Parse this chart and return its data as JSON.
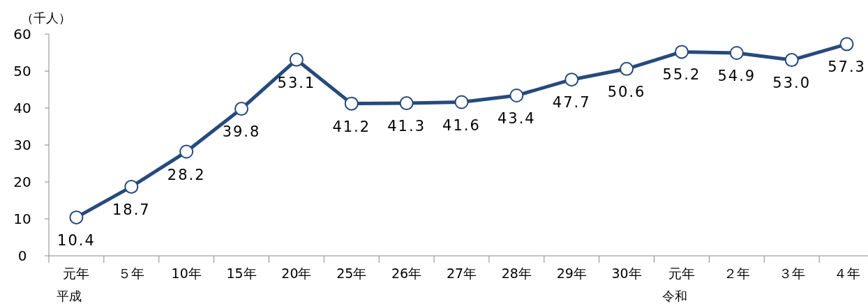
{
  "chart_data": {
    "type": "line",
    "ylabel": "（千人）",
    "categories": [
      "元年",
      "５年",
      "10年",
      "15年",
      "20年",
      "25年",
      "26年",
      "27年",
      "28年",
      "29年",
      "30年",
      "元年",
      "２年",
      "３年",
      "４年"
    ],
    "series": [
      {
        "color": "#264a7c",
        "values": [
          10.4,
          18.7,
          28.2,
          39.8,
          53.1,
          41.2,
          41.3,
          41.6,
          43.4,
          47.7,
          50.6,
          55.2,
          54.9,
          53.0,
          57.3
        ],
        "value_labels": [
          "10.4",
          "18.7",
          "28.2",
          "39.8",
          "53.1",
          "41.2",
          "41.3",
          "41.6",
          "43.4",
          "47.7",
          "50.6",
          "55.2",
          "54.9",
          "53.0",
          "57.3"
        ]
      }
    ],
    "ylim": [
      0,
      60
    ],
    "yticks": [
      0,
      10,
      20,
      30,
      40,
      50,
      60
    ],
    "marker": "circle",
    "line_style": "solid",
    "grid": false,
    "annotations": [
      "平成",
      "令和"
    ]
  }
}
